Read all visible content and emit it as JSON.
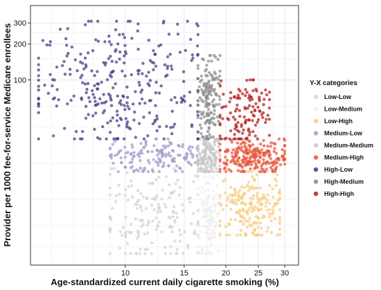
{
  "chart_data": {
    "type": "scatter",
    "title": "",
    "xlabel": "Age-standardized current daily cigarette smoking (%)",
    "ylabel": "Provider per 1000 fee-for-service Medicare enrollees",
    "x_scale": "log",
    "y_scale": "log",
    "xlim": [
      5.2,
      33
    ],
    "ylim": [
      2.8,
      420
    ],
    "x_ticks": [
      10,
      15,
      20,
      25,
      30
    ],
    "x_tick_labels": [
      "10",
      "15",
      "20",
      "25",
      "30"
    ],
    "y_ticks": [
      100,
      200,
      300
    ],
    "y_tick_labels": [
      "100",
      "200",
      "300"
    ],
    "grid": true,
    "legend_title": "Y-X categories",
    "legend_position": "right",
    "categories": [
      {
        "name": "Low-Low",
        "color": "#d2d2d8"
      },
      {
        "name": "Low-Medium",
        "color": "#eeeeee"
      },
      {
        "name": "Low-High",
        "color": "#f7cd7f"
      },
      {
        "name": "Medium-Low",
        "color": "#a59ac9"
      },
      {
        "name": "Medium-Medium",
        "color": "#c8c8c8"
      },
      {
        "name": "Medium-High",
        "color": "#e8553a"
      },
      {
        "name": "High-Low",
        "color": "#3f3a84"
      },
      {
        "name": "High-Medium",
        "color": "#8a8a8a"
      },
      {
        "name": "High-High",
        "color": "#b31b1b"
      }
    ],
    "series": [
      {
        "name": "Low-Low",
        "x_range": [
          9,
          16.5
        ],
        "y_range": [
          3.5,
          18
        ],
        "sample_points": [
          [
            10,
            3.5
          ],
          [
            9.6,
            11
          ],
          [
            11.2,
            8
          ],
          [
            12.5,
            6
          ],
          [
            14.8,
            9
          ],
          [
            16,
            14
          ]
        ]
      },
      {
        "name": "Low-Medium",
        "x_range": [
          16.5,
          19.2
        ],
        "y_range": [
          3.5,
          18
        ],
        "sample_points": [
          [
            17,
            3.5
          ],
          [
            17.5,
            10
          ],
          [
            18.2,
            7
          ],
          [
            18.8,
            13
          ]
        ]
      },
      {
        "name": "Low-High",
        "x_range": [
          19.2,
          29
        ],
        "y_range": [
          5,
          17
        ],
        "sample_points": [
          [
            20.5,
            5
          ],
          [
            22,
            8
          ],
          [
            25,
            10
          ],
          [
            27,
            13
          ],
          [
            28.5,
            16
          ]
        ]
      },
      {
        "name": "Medium-Low",
        "x_range": [
          9,
          16.5
        ],
        "y_range": [
          17,
          32
        ],
        "sample_points": [
          [
            9.2,
            20
          ],
          [
            11,
            24
          ],
          [
            13,
            28
          ],
          [
            15,
            22
          ]
        ]
      },
      {
        "name": "Medium-Medium",
        "x_range": [
          16.5,
          19.2
        ],
        "y_range": [
          17,
          32
        ],
        "sample_points": [
          [
            17,
            20
          ],
          [
            18,
            26
          ],
          [
            19,
            30
          ]
        ]
      },
      {
        "name": "Medium-High",
        "x_range": [
          19.2,
          30
        ],
        "y_range": [
          17,
          32
        ],
        "sample_points": [
          [
            20,
            20
          ],
          [
            23,
            25
          ],
          [
            26,
            28
          ],
          [
            29.5,
            23
          ]
        ]
      },
      {
        "name": "High-Low",
        "x_range": [
          5.5,
          16.5
        ],
        "y_range": [
          32,
          310
        ],
        "sample_points": [
          [
            5.5,
            60
          ],
          [
            9.5,
            200
          ],
          [
            13,
            300
          ],
          [
            11,
            120
          ],
          [
            8,
            50
          ]
        ]
      },
      {
        "name": "High-Medium",
        "x_range": [
          16.5,
          19.2
        ],
        "y_range": [
          32,
          160
        ],
        "sample_points": [
          [
            17,
            150
          ],
          [
            18,
            80
          ],
          [
            19,
            45
          ]
        ]
      },
      {
        "name": "High-High",
        "x_range": [
          19.2,
          27
        ],
        "y_range": [
          32,
          100
        ],
        "sample_points": [
          [
            20,
            60
          ],
          [
            22,
            70
          ],
          [
            26.5,
            75
          ]
        ]
      }
    ]
  }
}
